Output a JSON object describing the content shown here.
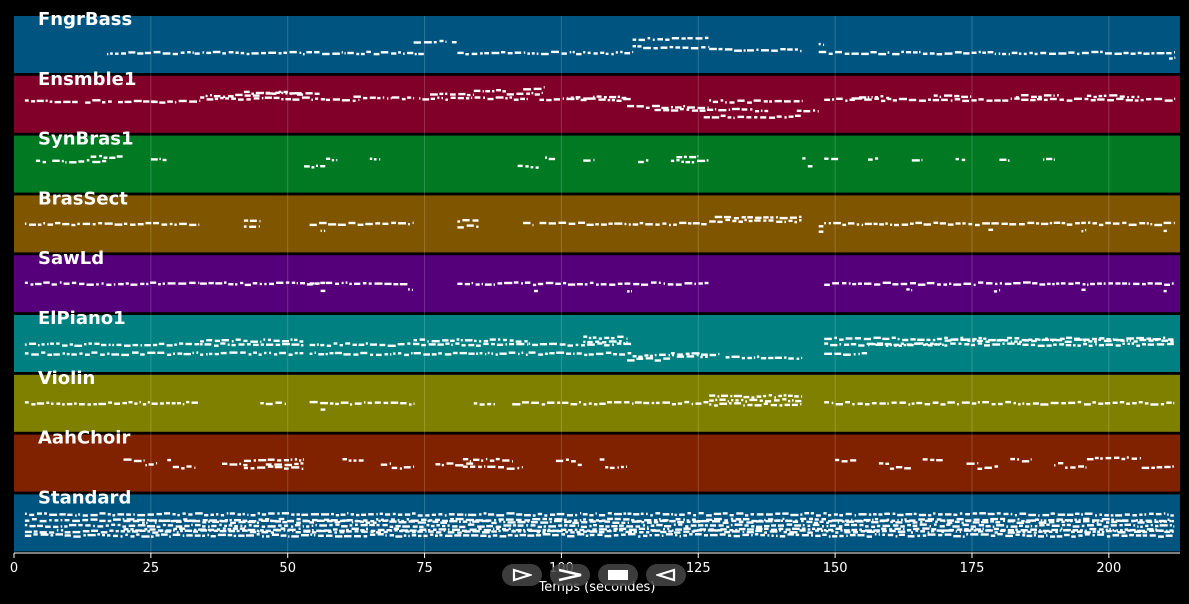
{
  "chart_data": {
    "type": "piano-roll",
    "xlabel": "Temps (secondes)",
    "xlim": [
      0,
      213
    ],
    "xticks": [
      0,
      25,
      50,
      75,
      100,
      125,
      150,
      175,
      200
    ],
    "grid": true,
    "background": "#000000",
    "note_color": "#ffffff",
    "tracks": [
      {
        "name": "FngrBass",
        "color": "#005580",
        "segments": [
          [
            17,
            33,
            0.65
          ],
          [
            33,
            75,
            0.65
          ],
          [
            73,
            79,
            0.45
          ],
          [
            80,
            81,
            0.45
          ],
          [
            81,
            113,
            0.65
          ],
          [
            113,
            127,
            0.55
          ],
          [
            113,
            127,
            0.4
          ],
          [
            127,
            144,
            0.6
          ],
          [
            147,
            212,
            0.65
          ],
          [
            147,
            148,
            0.5
          ],
          [
            211,
            212,
            0.75
          ]
        ]
      },
      {
        "name": "Ensmble1",
        "color": "#80002a",
        "segments": [
          [
            2,
            12,
            0.45
          ],
          [
            13,
            18,
            0.45
          ],
          [
            19,
            28,
            0.45
          ],
          [
            25,
            26,
            0.45
          ],
          [
            28,
            34,
            0.45
          ],
          [
            34,
            57,
            0.4
          ],
          [
            35,
            45,
            0.35
          ],
          [
            42,
            53,
            0.3
          ],
          [
            46,
            56,
            0.32
          ],
          [
            57,
            63,
            0.42
          ],
          [
            62,
            69,
            0.38
          ],
          [
            69,
            73,
            0.4
          ],
          [
            74,
            94,
            0.4
          ],
          [
            76,
            84,
            0.32
          ],
          [
            84,
            90,
            0.27
          ],
          [
            90,
            97,
            0.32
          ],
          [
            93,
            97,
            0.22
          ],
          [
            96,
            113,
            0.42
          ],
          [
            101,
            112,
            0.38
          ],
          [
            112,
            127,
            0.55
          ],
          [
            117,
            138,
            0.6
          ],
          [
            126,
            144,
            0.72
          ],
          [
            127,
            144,
            0.45
          ],
          [
            143,
            147,
            0.62
          ],
          [
            148,
            212,
            0.42
          ],
          [
            153,
            160,
            0.38
          ],
          [
            168,
            175,
            0.36
          ],
          [
            183,
            191,
            0.36
          ],
          [
            196,
            206,
            0.36
          ]
        ]
      },
      {
        "name": "SynBras1",
        "color": "#007a22",
        "segments": [
          [
            4,
            6,
            0.45
          ],
          [
            7,
            17,
            0.45
          ],
          [
            14,
            20,
            0.38
          ],
          [
            25,
            28,
            0.42
          ],
          [
            53,
            57,
            0.55
          ],
          [
            57,
            59,
            0.42
          ],
          [
            65,
            67,
            0.42
          ],
          [
            92,
            96,
            0.55
          ],
          [
            97,
            99,
            0.4
          ],
          [
            104,
            106,
            0.42
          ],
          [
            114,
            116,
            0.45
          ],
          [
            120,
            127,
            0.45
          ],
          [
            121,
            125,
            0.38
          ],
          [
            144,
            145,
            0.42
          ],
          [
            145,
            146,
            0.55
          ],
          [
            148,
            151,
            0.42
          ],
          [
            156,
            158,
            0.42
          ],
          [
            164,
            166,
            0.42
          ],
          [
            172,
            174,
            0.42
          ],
          [
            180,
            182,
            0.42
          ],
          [
            188,
            190,
            0.42
          ]
        ]
      },
      {
        "name": "BrasSect",
        "color": "#805500",
        "segments": [
          [
            2,
            34,
            0.5
          ],
          [
            42,
            45,
            0.45
          ],
          [
            42,
            45,
            0.55
          ],
          [
            54,
            73,
            0.5
          ],
          [
            56,
            57,
            0.62
          ],
          [
            81,
            85,
            0.45
          ],
          [
            81,
            85,
            0.55
          ],
          [
            93,
            95,
            0.5
          ],
          [
            96,
            127,
            0.5
          ],
          [
            127,
            144,
            0.45
          ],
          [
            128,
            144,
            0.38
          ],
          [
            147,
            148,
            0.55
          ],
          [
            147,
            148,
            0.62
          ],
          [
            148,
            212,
            0.5
          ],
          [
            178,
            179,
            0.62
          ],
          [
            195,
            196,
            0.62
          ],
          [
            210,
            211,
            0.62
          ]
        ]
      },
      {
        "name": "SawLd",
        "color": "#55007a",
        "segments": [
          [
            2,
            34,
            0.5
          ],
          [
            34,
            57,
            0.5
          ],
          [
            56,
            57,
            0.62
          ],
          [
            54,
            72,
            0.5
          ],
          [
            72,
            73,
            0.62
          ],
          [
            81,
            127,
            0.5
          ],
          [
            95,
            96,
            0.62
          ],
          [
            112,
            113,
            0.62
          ],
          [
            148,
            212,
            0.5
          ],
          [
            163,
            164,
            0.62
          ],
          [
            179,
            180,
            0.62
          ],
          [
            195,
            196,
            0.62
          ],
          [
            210,
            211,
            0.62
          ]
        ]
      },
      {
        "name": "ElPiano1",
        "color": "#008080",
        "segments": [
          [
            2,
            34,
            0.52
          ],
          [
            2,
            34,
            0.68
          ],
          [
            34,
            53,
            0.45
          ],
          [
            34,
            53,
            0.52
          ],
          [
            34,
            53,
            0.68
          ],
          [
            54,
            73,
            0.52
          ],
          [
            54,
            73,
            0.68
          ],
          [
            73,
            94,
            0.45
          ],
          [
            73,
            94,
            0.52
          ],
          [
            73,
            94,
            0.68
          ],
          [
            94,
            113,
            0.52
          ],
          [
            94,
            113,
            0.68
          ],
          [
            104,
            112,
            0.4
          ],
          [
            104,
            112,
            0.48
          ],
          [
            113,
            127,
            0.72
          ],
          [
            112,
            120,
            0.78
          ],
          [
            120,
            129,
            0.68
          ],
          [
            130,
            144,
            0.75
          ],
          [
            148,
            212,
            0.42
          ],
          [
            148,
            212,
            0.52
          ],
          [
            148,
            156,
            0.68
          ],
          [
            156,
            170,
            0.52
          ],
          [
            170,
            212,
            0.45
          ]
        ]
      },
      {
        "name": "Violin",
        "color": "#808000",
        "segments": [
          [
            2,
            34,
            0.5
          ],
          [
            45,
            50,
            0.5
          ],
          [
            54,
            73,
            0.5
          ],
          [
            56,
            57,
            0.62
          ],
          [
            84,
            88,
            0.5
          ],
          [
            91,
            127,
            0.5
          ],
          [
            127,
            144,
            0.38
          ],
          [
            127,
            144,
            0.45
          ],
          [
            127,
            144,
            0.52
          ],
          [
            148,
            212,
            0.5
          ]
        ]
      },
      {
        "name": "AahChoir",
        "color": "#802200",
        "segments": [
          [
            20,
            24,
            0.45
          ],
          [
            24,
            26,
            0.52
          ],
          [
            28,
            29,
            0.45
          ],
          [
            29,
            33,
            0.58
          ],
          [
            38,
            43,
            0.52
          ],
          [
            42,
            53,
            0.45
          ],
          [
            42,
            53,
            0.58
          ],
          [
            46,
            53,
            0.52
          ],
          [
            60,
            64,
            0.45
          ],
          [
            67,
            69,
            0.52
          ],
          [
            69,
            73,
            0.58
          ],
          [
            77,
            84,
            0.52
          ],
          [
            82,
            91,
            0.45
          ],
          [
            82,
            93,
            0.58
          ],
          [
            99,
            103,
            0.45
          ],
          [
            103,
            104,
            0.52
          ],
          [
            107,
            108,
            0.45
          ],
          [
            108,
            112,
            0.58
          ],
          [
            150,
            154,
            0.45
          ],
          [
            158,
            160,
            0.52
          ],
          [
            160,
            164,
            0.58
          ],
          [
            166,
            170,
            0.45
          ],
          [
            174,
            176,
            0.52
          ],
          [
            176,
            180,
            0.58
          ],
          [
            182,
            186,
            0.45
          ],
          [
            190,
            192,
            0.52
          ],
          [
            192,
            196,
            0.58
          ],
          [
            196,
            206,
            0.42
          ],
          [
            206,
            212,
            0.58
          ]
        ]
      },
      {
        "name": "Standard",
        "color": "#005580",
        "segments": [
          [
            2,
            212,
            0.35
          ],
          [
            2,
            212,
            0.45
          ],
          [
            2,
            212,
            0.55
          ],
          [
            2,
            212,
            0.65
          ],
          [
            2,
            212,
            0.72
          ],
          [
            20,
            212,
            0.48
          ],
          [
            20,
            212,
            0.62
          ]
        ]
      }
    ]
  },
  "transport": {
    "buttons": [
      {
        "name": "play-icon"
      },
      {
        "name": "fast-forward-icon"
      },
      {
        "name": "stop-icon"
      },
      {
        "name": "rewind-icon"
      }
    ]
  }
}
